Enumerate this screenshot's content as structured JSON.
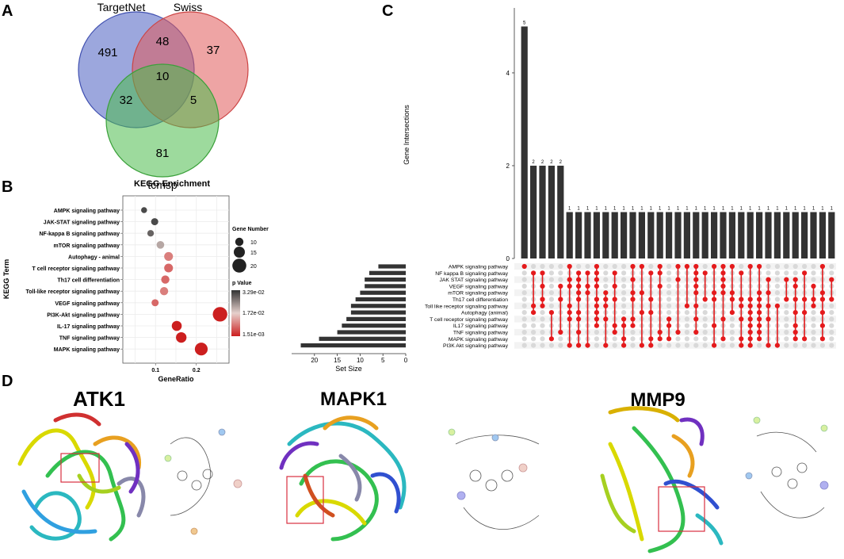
{
  "panels": {
    "a": "A",
    "b": "B",
    "c": "C",
    "d": "D"
  },
  "chart_data": [
    {
      "type": "venn",
      "panel": "A",
      "sets": [
        {
          "name": "TargetNet",
          "color": "#4a5fc1"
        },
        {
          "name": "Swiss",
          "color": "#e05a5a"
        },
        {
          "name": "tcmsp",
          "color": "#4cbc4c"
        }
      ],
      "regions": {
        "TargetNet": 491,
        "Swiss": 37,
        "tcmsp": 81,
        "TargetNet&Swiss": 48,
        "TargetNet&tcmsp": 32,
        "Swiss&tcmsp": 5,
        "TargetNet&Swiss&tcmsp": 10
      }
    },
    {
      "type": "scatter",
      "panel": "B",
      "title": "KEGG Enrichment",
      "xlabel": "GeneRatio",
      "ylabel": "KEGG Term",
      "xlim": [
        0.02,
        0.28
      ],
      "xticks": [
        0.1,
        0.2
      ],
      "xtick_labels": [
        "0.1",
        "0.2"
      ],
      "terms": [
        "AMPK signaling pathway",
        "JAK-STAT signaling pathway",
        "NF-kappa B signaling pathway",
        "mTOR signaling pathway",
        "Autophagy - animal",
        "T cell receptor signaling pathway",
        "Th17 cell differentiation",
        "Toll-like receptor signaling pathway",
        "VEGF signaling pathway",
        "PI3K-Akt signaling pathway",
        "IL-17 signaling pathway",
        "TNF signaling pathway",
        "MAPK signaling pathway"
      ],
      "gene_ratio": [
        0.072,
        0.098,
        0.088,
        0.112,
        0.132,
        0.132,
        0.124,
        0.121,
        0.099,
        0.258,
        0.152,
        0.163,
        0.212
      ],
      "gene_number": [
        6,
        8,
        7,
        9,
        11,
        11,
        10,
        10,
        8,
        21,
        13,
        14,
        18
      ],
      "p_value": [
        0.0329,
        0.0329,
        0.03,
        0.022,
        0.01,
        0.008,
        0.008,
        0.01,
        0.008,
        0.0015,
        0.0015,
        0.0015,
        0.0015
      ],
      "size_legend": {
        "title": "Gene Number",
        "values": [
          10,
          15,
          20
        ],
        "labels": [
          "10",
          "15",
          "20"
        ]
      },
      "color_legend": {
        "title": "p Value",
        "labels": [
          "3.29e-02",
          "1.72e-02",
          "1.51e-03"
        ],
        "low_color": "#cc1f1f",
        "high_color": "#4a4a4a"
      }
    },
    {
      "type": "upset",
      "panel": "C",
      "ylabel": "Gene Intersections",
      "xlabel_sets": "Set Size",
      "ylim": [
        0,
        5.4
      ],
      "yticks": [
        "0",
        "2",
        "4"
      ],
      "set_size_ticks": [
        "20",
        "15",
        "10",
        "5",
        "0"
      ],
      "sets": [
        "AMPK signaling pathway",
        "NF kappa B signaling pathway",
        "JAK STAT signaling pathway",
        "VEGF signaling pathway",
        "mTOR signaling pathway",
        "Th17 cell differentiation",
        "Toll like receptor signaling pathway",
        "Autophagy (animal)",
        "T cell receptor signaling pathway",
        "IL17 signaling pathway",
        "TNF signaling pathway",
        "MAPK signaling pathway",
        "PI3K Akt signaling pathway"
      ],
      "set_sizes": [
        6,
        8,
        9,
        9,
        10,
        11,
        12,
        12,
        13,
        14,
        15,
        19,
        23
      ],
      "intersection_sizes": [
        5,
        2,
        2,
        2,
        2,
        1,
        1,
        1,
        1,
        1,
        1,
        1,
        1,
        1,
        1,
        1,
        1,
        1,
        1,
        1,
        1,
        1,
        1,
        1,
        1,
        1,
        1,
        1,
        1,
        1,
        1,
        1,
        1,
        1,
        1
      ],
      "intersection_labels": [
        "5",
        "2",
        "2",
        "2",
        "2",
        "1",
        "1",
        "1",
        "1",
        "1",
        "1",
        "1",
        "1",
        "1",
        "1",
        "1",
        "1",
        "1",
        "1",
        "1",
        "1",
        "1",
        "1",
        "1",
        "1",
        "1",
        "1",
        "1",
        "1",
        "1",
        "1",
        "1",
        "1",
        "1",
        "1"
      ],
      "bar_color": "#333333",
      "dot_color": "#e41a1c"
    }
  ],
  "panel_d": {
    "titles": [
      "ATK1",
      "MAPK1",
      "MMP9"
    ]
  }
}
